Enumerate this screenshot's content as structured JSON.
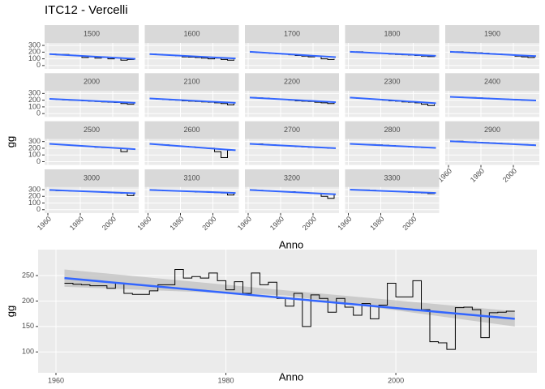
{
  "chart_data": [
    {
      "type": "facet-step",
      "title": "ITC12 - Vercelli",
      "x_label": "Anno",
      "y_label": "gg",
      "x": [
        1961,
        1965,
        1969,
        1973,
        1977,
        1981,
        1985,
        1989,
        1993,
        1997,
        2001,
        2005,
        2009,
        2013
      ],
      "xlim": [
        1958,
        2016
      ],
      "xticks": [
        1960,
        1980,
        2000
      ],
      "ylim": [
        -50,
        337
      ],
      "yticks": [
        0,
        100,
        200,
        300
      ],
      "trend_x": [
        1961,
        2014
      ],
      "color": "#000000",
      "trend_color": "#3366ff",
      "panels": [
        {
          "title": "1500",
          "values": [
            170,
            160,
            165,
            155,
            150,
            120,
            130,
            110,
            120,
            100,
            115,
            80,
            90,
            95
          ],
          "trend": [
            170,
            100
          ]
        },
        {
          "title": "1600",
          "values": [
            170,
            165,
            160,
            150,
            145,
            130,
            125,
            120,
            110,
            100,
            110,
            90,
            80,
            90
          ],
          "trend": [
            170,
            105
          ]
        },
        {
          "title": "1700",
          "values": [
            200,
            195,
            190,
            180,
            175,
            170,
            160,
            150,
            140,
            130,
            140,
            100,
            90,
            100
          ],
          "trend": [
            205,
            125
          ]
        },
        {
          "title": "1800",
          "values": [
            200,
            205,
            195,
            190,
            185,
            180,
            170,
            165,
            160,
            155,
            150,
            140,
            135,
            140
          ],
          "trend": [
            205,
            145
          ]
        },
        {
          "title": "1900",
          "values": [
            200,
            205,
            200,
            195,
            190,
            185,
            175,
            170,
            165,
            160,
            140,
            130,
            120,
            140
          ],
          "trend": [
            205,
            140
          ]
        },
        {
          "title": "2000",
          "values": [
            215,
            210,
            205,
            200,
            195,
            190,
            185,
            180,
            175,
            170,
            165,
            150,
            140,
            150
          ],
          "trend": [
            220,
            160
          ]
        },
        {
          "title": "2100",
          "values": [
            220,
            215,
            210,
            205,
            200,
            190,
            185,
            180,
            175,
            170,
            160,
            150,
            130,
            150
          ],
          "trend": [
            225,
            160
          ]
        },
        {
          "title": "2200",
          "values": [
            240,
            235,
            230,
            220,
            215,
            210,
            200,
            190,
            185,
            180,
            170,
            160,
            150,
            160
          ],
          "trend": [
            240,
            170
          ]
        },
        {
          "title": "2300",
          "values": [
            235,
            230,
            225,
            215,
            210,
            200,
            190,
            185,
            175,
            170,
            160,
            140,
            120,
            140
          ],
          "trend": [
            240,
            155
          ]
        },
        {
          "title": "2400",
          "values": [
            250,
            245,
            240,
            240,
            235,
            230,
            225,
            220,
            215,
            210,
            205,
            200,
            195,
            200
          ],
          "trend": [
            250,
            195
          ]
        },
        {
          "title": "2500",
          "values": [
            260,
            255,
            250,
            245,
            240,
            230,
            225,
            215,
            210,
            205,
            200,
            150,
            190,
            190
          ],
          "trend": [
            265,
            185
          ]
        },
        {
          "title": "2600",
          "values": [
            260,
            255,
            250,
            240,
            235,
            230,
            220,
            210,
            205,
            200,
            150,
            60,
            170,
            175
          ],
          "trend": [
            265,
            170
          ]
        },
        {
          "title": "2700",
          "values": [
            260,
            265,
            255,
            250,
            245,
            240,
            235,
            225,
            220,
            215,
            210,
            205,
            200,
            205
          ],
          "trend": [
            265,
            200
          ]
        },
        {
          "title": "2800",
          "values": [
            265,
            260,
            255,
            255,
            250,
            245,
            240,
            230,
            225,
            220,
            215,
            210,
            205,
            210
          ],
          "trend": [
            265,
            205
          ]
        },
        {
          "title": "2900",
          "values": [
            300,
            305,
            295,
            295,
            290,
            285,
            280,
            275,
            270,
            265,
            260,
            255,
            250,
            250
          ],
          "trend": [
            305,
            245
          ]
        },
        {
          "title": "3000",
          "values": [
            290,
            285,
            285,
            280,
            280,
            275,
            270,
            265,
            260,
            255,
            250,
            245,
            210,
            250
          ],
          "trend": [
            295,
            245
          ]
        },
        {
          "title": "3100",
          "values": [
            295,
            290,
            285,
            285,
            280,
            275,
            270,
            265,
            265,
            260,
            255,
            250,
            220,
            255
          ],
          "trend": [
            295,
            250
          ]
        },
        {
          "title": "3200",
          "values": [
            295,
            290,
            285,
            280,
            275,
            270,
            270,
            260,
            255,
            250,
            240,
            200,
            170,
            230
          ],
          "trend": [
            295,
            230
          ]
        },
        {
          "title": "3300",
          "values": [
            300,
            295,
            295,
            290,
            285,
            280,
            275,
            270,
            265,
            260,
            255,
            250,
            240,
            255
          ],
          "trend": [
            300,
            250
          ]
        }
      ]
    },
    {
      "type": "step",
      "x_label": "Anno",
      "y_label": "gg",
      "color": "#000000",
      "trend_color": "#3366ff",
      "band_color": "#bdbdbd",
      "x": [
        1961,
        1962,
        1963,
        1964,
        1965,
        1966,
        1967,
        1968,
        1969,
        1970,
        1971,
        1972,
        1973,
        1974,
        1975,
        1976,
        1977,
        1978,
        1979,
        1980,
        1981,
        1982,
        1983,
        1984,
        1985,
        1986,
        1987,
        1988,
        1989,
        1990,
        1991,
        1992,
        1993,
        1994,
        1995,
        1996,
        1997,
        1998,
        1999,
        2000,
        2001,
        2002,
        2003,
        2004,
        2005,
        2006,
        2007,
        2008,
        2009,
        2010,
        2011,
        2012,
        2013,
        2014
      ],
      "values": [
        235,
        233,
        232,
        230,
        230,
        225,
        235,
        215,
        213,
        213,
        220,
        232,
        232,
        262,
        245,
        248,
        245,
        255,
        240,
        222,
        238,
        215,
        255,
        232,
        237,
        205,
        190,
        215,
        150,
        212,
        205,
        178,
        205,
        188,
        172,
        195,
        165,
        192,
        235,
        208,
        208,
        240,
        183,
        120,
        118,
        105,
        187,
        188,
        183,
        128,
        177,
        178,
        180,
        180
      ],
      "xlim": [
        1957.9,
        2016.6
      ],
      "xticks": [
        1960,
        1980,
        2000
      ],
      "ylim": [
        59,
        301
      ],
      "yticks": [
        100,
        150,
        200,
        250
      ],
      "trend": {
        "x": [
          1961,
          2014
        ],
        "values": [
          245,
          165
        ]
      },
      "band": {
        "x": [
          1961,
          1987,
          2014
        ],
        "upper": [
          262,
          221,
          180
        ],
        "lower": [
          228,
          211,
          150
        ]
      }
    }
  ]
}
